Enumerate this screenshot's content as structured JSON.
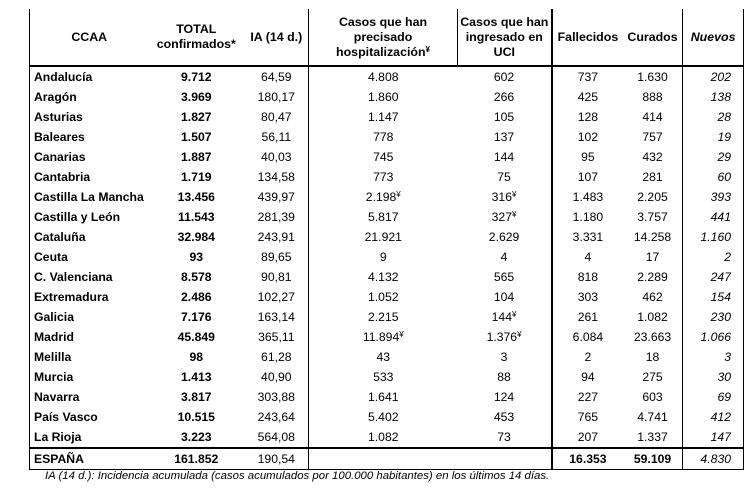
{
  "headers": {
    "ccaa": "CCAA",
    "total_line1": "TOTAL",
    "total_line2": "confirmados*",
    "ia": "IA (14 d.)",
    "hosp_line1": "Casos que han",
    "hosp_line2": "precisado",
    "hosp_line3": "hospitalización",
    "hosp_mark": "¥",
    "uci_line1": "Casos que han",
    "uci_line2": "ingresado en",
    "uci_line3": "UCI",
    "fallecidos": "Fallecidos",
    "curados": "Curados",
    "nuevos": "Nuevos"
  },
  "rows": [
    {
      "name": "Andalucía",
      "total": "9.712",
      "ia": "64,59",
      "hosp": "4.808",
      "hosp_mark": "",
      "uci": "602",
      "uci_mark": "",
      "fall": "737",
      "cur": "1.630",
      "new": "202"
    },
    {
      "name": "Aragón",
      "total": "3.969",
      "ia": "180,17",
      "hosp": "1.860",
      "hosp_mark": "",
      "uci": "266",
      "uci_mark": "",
      "fall": "425",
      "cur": "888",
      "new": "138"
    },
    {
      "name": "Asturias",
      "total": "1.827",
      "ia": "80,47",
      "hosp": "1.147",
      "hosp_mark": "",
      "uci": "105",
      "uci_mark": "",
      "fall": "128",
      "cur": "414",
      "new": "28"
    },
    {
      "name": "Baleares",
      "total": "1.507",
      "ia": "56,11",
      "hosp": "778",
      "hosp_mark": "",
      "uci": "137",
      "uci_mark": "",
      "fall": "102",
      "cur": "757",
      "new": "19"
    },
    {
      "name": "Canarias",
      "total": "1.887",
      "ia": "40,03",
      "hosp": "745",
      "hosp_mark": "",
      "uci": "144",
      "uci_mark": "",
      "fall": "95",
      "cur": "432",
      "new": "29"
    },
    {
      "name": "Cantabria",
      "total": "1.719",
      "ia": "134,58",
      "hosp": "773",
      "hosp_mark": "",
      "uci": "75",
      "uci_mark": "",
      "fall": "107",
      "cur": "281",
      "new": "60"
    },
    {
      "name": "Castilla La Mancha",
      "total": "13.456",
      "ia": "439,97",
      "hosp": "2.198",
      "hosp_mark": "¥",
      "uci": "316",
      "uci_mark": "¥",
      "fall": "1.483",
      "cur": "2.205",
      "new": "393"
    },
    {
      "name": "Castilla y León",
      "total": "11.543",
      "ia": "281,39",
      "hosp": "5.817",
      "hosp_mark": "",
      "uci": "327",
      "uci_mark": "¥",
      "fall": "1.180",
      "cur": "3.757",
      "new": "441"
    },
    {
      "name": "Cataluña",
      "total": "32.984",
      "ia": "243,91",
      "hosp": "21.921",
      "hosp_mark": "",
      "uci": "2.629",
      "uci_mark": "",
      "fall": "3.331",
      "cur": "14.258",
      "new": "1.160"
    },
    {
      "name": "Ceuta",
      "total": "93",
      "ia": "89,65",
      "hosp": "9",
      "hosp_mark": "",
      "uci": "4",
      "uci_mark": "",
      "fall": "4",
      "cur": "17",
      "new": "2"
    },
    {
      "name": "C. Valenciana",
      "total": "8.578",
      "ia": "90,81",
      "hosp": "4.132",
      "hosp_mark": "",
      "uci": "565",
      "uci_mark": "",
      "fall": "818",
      "cur": "2.289",
      "new": "247"
    },
    {
      "name": "Extremadura",
      "total": "2.486",
      "ia": "102,27",
      "hosp": "1.052",
      "hosp_mark": "",
      "uci": "104",
      "uci_mark": "",
      "fall": "303",
      "cur": "462",
      "new": "154"
    },
    {
      "name": "Galicia",
      "total": "7.176",
      "ia": "163,14",
      "hosp": "2.215",
      "hosp_mark": "",
      "uci": "144",
      "uci_mark": "¥",
      "fall": "261",
      "cur": "1.082",
      "new": "230"
    },
    {
      "name": "Madrid",
      "total": "45.849",
      "ia": "365,11",
      "hosp": "11.894",
      "hosp_mark": "¥",
      "uci": "1.376",
      "uci_mark": "¥",
      "fall": "6.084",
      "cur": "23.663",
      "new": "1.066"
    },
    {
      "name": "Melilla",
      "total": "98",
      "ia": "61,28",
      "hosp": "43",
      "hosp_mark": "",
      "uci": "3",
      "uci_mark": "",
      "fall": "2",
      "cur": "18",
      "new": "3"
    },
    {
      "name": "Murcia",
      "total": "1.413",
      "ia": "40,90",
      "hosp": "533",
      "hosp_mark": "",
      "uci": "88",
      "uci_mark": "",
      "fall": "94",
      "cur": "275",
      "new": "30"
    },
    {
      "name": "Navarra",
      "total": "3.817",
      "ia": "303,88",
      "hosp": "1.641",
      "hosp_mark": "",
      "uci": "124",
      "uci_mark": "",
      "fall": "227",
      "cur": "603",
      "new": "69"
    },
    {
      "name": "País Vasco",
      "total": "10.515",
      "ia": "243,64",
      "hosp": "5.402",
      "hosp_mark": "",
      "uci": "453",
      "uci_mark": "",
      "fall": "765",
      "cur": "4.741",
      "new": "412"
    },
    {
      "name": "La Rioja",
      "total": "3.223",
      "ia": "564,08",
      "hosp": "1.082",
      "hosp_mark": "",
      "uci": "73",
      "uci_mark": "",
      "fall": "207",
      "cur": "1.337",
      "new": "147"
    }
  ],
  "total_row": {
    "name": "ESPAÑA",
    "total": "161.852",
    "ia": "190,54",
    "hosp": "",
    "uci": "",
    "fall": "16.353",
    "cur": "59.109",
    "new": "4.830"
  },
  "footnote": "IA (14 d.): Incidencia acumulada (casos acumulados por 100.000 habitantes) en los últimos 14 días."
}
